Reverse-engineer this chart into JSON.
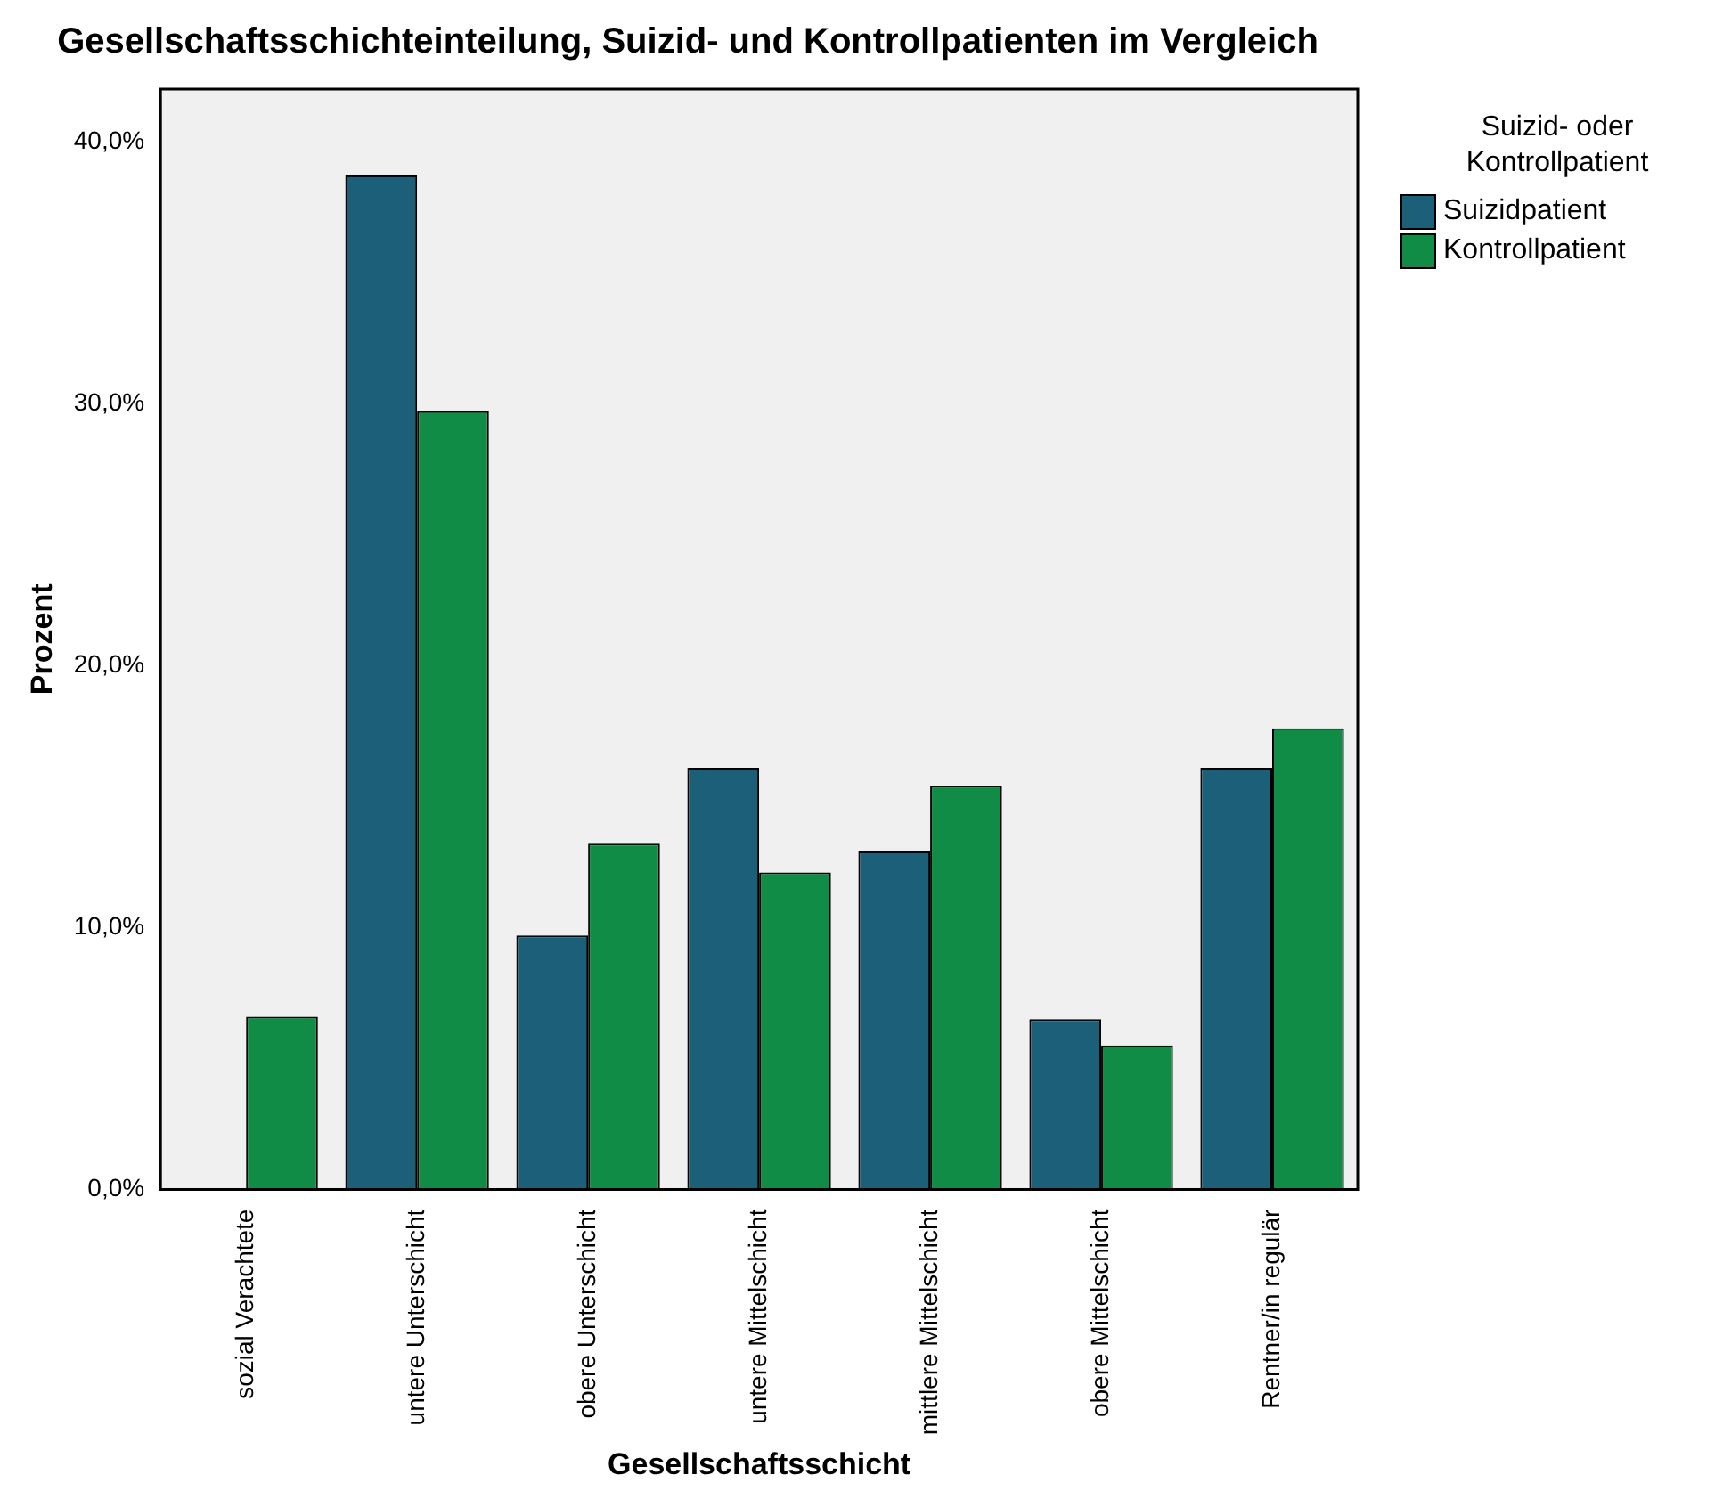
{
  "chart_data": {
    "type": "bar",
    "title": "Gesellschaftsschichteinteilung, Suizid- und Kontrollpatienten im Vergleich",
    "xlabel": "Gesellschaftsschicht",
    "ylabel": "Prozent",
    "legend_title": "Suizid- oder Kontrollpatient",
    "legend": "top right",
    "categories": [
      "sozial Verachtete",
      "untere Unterschicht",
      "obere Unterschicht",
      "untere Mittelschicht",
      "mittlere Mittelschicht",
      "obere Mittelschicht",
      "Rentner/in regulär"
    ],
    "series": [
      {
        "name": "Suizidpatient",
        "color": "#1c5f78",
        "values": [
          0,
          38.7,
          9.7,
          16.1,
          12.9,
          6.5,
          16.1
        ]
      },
      {
        "name": "Kontrollpatient",
        "color": "#108c47",
        "values": [
          6.6,
          29.7,
          13.2,
          12.1,
          15.4,
          5.5,
          17.6
        ]
      }
    ],
    "ylim": [
      0,
      42
    ],
    "yticks": [
      {
        "value": 0,
        "label": "0,0%"
      },
      {
        "value": 10,
        "label": "10,0%"
      },
      {
        "value": 20,
        "label": "20,0%"
      },
      {
        "value": 30,
        "label": "30,0%"
      },
      {
        "value": 40,
        "label": "40,0%"
      }
    ],
    "grid": false
  }
}
